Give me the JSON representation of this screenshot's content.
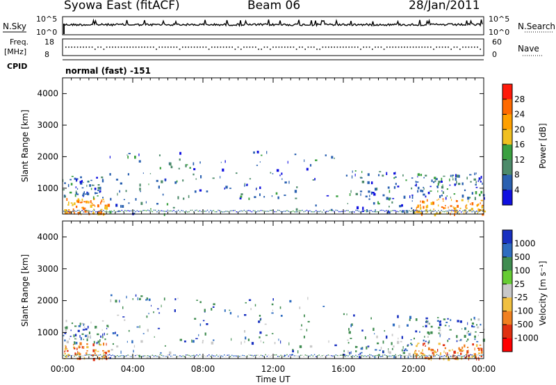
{
  "header": {
    "title": "Syowa East (fitACF)",
    "beam": "Beam 06",
    "date": "28/Jan/2011"
  },
  "top_panels": {
    "nsky_label": "N.Sky",
    "nsky_ticks": [
      "10^5",
      "10^0"
    ],
    "nsearch_label": "N.Search",
    "nsearch_ticks": [
      "10^5",
      "10^0"
    ],
    "freq_label_1": "Freq.",
    "freq_label_2": "[MHz]",
    "freq_ticks": [
      "18",
      "8"
    ],
    "nave_label": "Nave",
    "nave_ticks": [
      "60",
      "0"
    ],
    "cpid_label": "CPID",
    "cpid_value": "normal (fast) -151"
  },
  "chart_data": [
    {
      "type": "heatmap",
      "name": "power",
      "ylabel": "Slant Range [km]",
      "yticks": [
        "4000",
        "3000",
        "2000",
        "1000"
      ],
      "ylim": [
        180,
        4500
      ],
      "xlabel": "Time UT",
      "xticks": [
        "00:00",
        "04:00",
        "08:00",
        "12:00",
        "16:00",
        "20:00",
        "00:00"
      ],
      "xlim_hours": [
        0,
        24
      ],
      "colorbar_label": "Power [dB]",
      "colorbar_ticks": [
        "28",
        "24",
        "20",
        "16",
        "12",
        "8",
        "4"
      ],
      "colorbar_colors": [
        "#ff1a0a",
        "#ff6a00",
        "#ffa000",
        "#f0c020",
        "#3aa040",
        "#4c8a6a",
        "#2a60b0",
        "#1010e0"
      ]
    },
    {
      "type": "heatmap",
      "name": "velocity",
      "ylabel": "Slant Range [km]",
      "yticks": [
        "4000",
        "3000",
        "2000",
        "1000"
      ],
      "ylim": [
        180,
        4500
      ],
      "xlabel": "Time UT",
      "xticks": [
        "00:00",
        "04:00",
        "08:00",
        "12:00",
        "16:00",
        "20:00",
        "00:00"
      ],
      "xlim_hours": [
        0,
        24
      ],
      "colorbar_label": "Velocity [m s⁻¹]",
      "colorbar_ticks": [
        "1000",
        "500",
        "100",
        "25",
        "-25",
        "-100",
        "-500",
        "-1000"
      ],
      "colorbar_colors": [
        "#1830c0",
        "#2e6cc0",
        "#3f8c50",
        "#66cc33",
        "#c8c8c8",
        "#f0c040",
        "#f08020",
        "#e03010",
        "#ff0000"
      ]
    }
  ]
}
